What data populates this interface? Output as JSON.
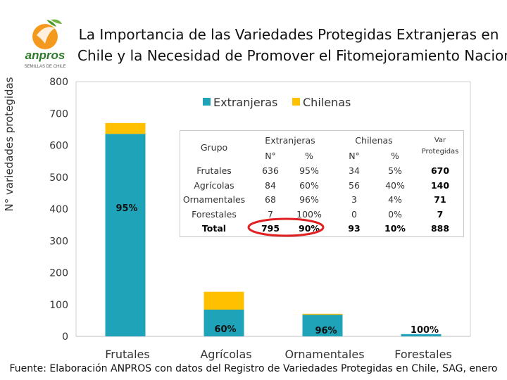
{
  "title": {
    "line1": "La Importancia de las Variedades Protegidas Extranjeras en",
    "line2": "Chile y la Necesidad de Promover el Fitomejoramiento Nacional"
  },
  "logo": {
    "brand": "anpros",
    "tagline": "SEMILLAS DE CHILE"
  },
  "colors": {
    "extranjeras": "#1fa3b8",
    "chilenas": "#ffc000",
    "highlight": "#e02020"
  },
  "chart_data": {
    "type": "bar",
    "stacked": true,
    "categories": [
      "Frutales",
      "Agrícolas",
      "Ornamentales",
      "Forestales"
    ],
    "series": [
      {
        "name": "Extranjeras",
        "values": [
          636,
          84,
          68,
          7
        ]
      },
      {
        "name": "Chilenas",
        "values": [
          34,
          56,
          3,
          0
        ]
      }
    ],
    "bar_labels": [
      "95%",
      "60%",
      "96%",
      "100%"
    ],
    "ylabel": "N° variedades protegidas",
    "xlabel": "",
    "ylim": [
      0,
      800
    ],
    "yticks": [
      0,
      100,
      200,
      300,
      400,
      500,
      600,
      700,
      800
    ],
    "grid": false,
    "legend": "top-center"
  },
  "table": {
    "header_grupo": "Grupo",
    "header_extranjeras": "Extranjeras",
    "header_chilenas": "Chilenas",
    "header_var": "Var",
    "header_protegidas": "Protegidas",
    "sub_n": "N°",
    "sub_pct": "%",
    "rows": [
      {
        "grupo": "Frutales",
        "ext_n": "636",
        "ext_pct": "95%",
        "chi_n": "34",
        "chi_pct": "5%",
        "var": "670"
      },
      {
        "grupo": "Agrícolas",
        "ext_n": "84",
        "ext_pct": "60%",
        "chi_n": "56",
        "chi_pct": "40%",
        "var": "140"
      },
      {
        "grupo": "Ornamentales",
        "ext_n": "68",
        "ext_pct": "96%",
        "chi_n": "3",
        "chi_pct": "4%",
        "var": "71"
      },
      {
        "grupo": "Forestales",
        "ext_n": "7",
        "ext_pct": "100%",
        "chi_n": "0",
        "chi_pct": "0%",
        "var": "7"
      },
      {
        "grupo": "Total",
        "ext_n": "795",
        "ext_pct": "90%",
        "chi_n": "93",
        "chi_pct": "10%",
        "var": "888"
      }
    ]
  },
  "footer": "Fuente: Elaboración ANPROS con datos del Registro de Variedades Protegidas en Chile, SAG, enero"
}
